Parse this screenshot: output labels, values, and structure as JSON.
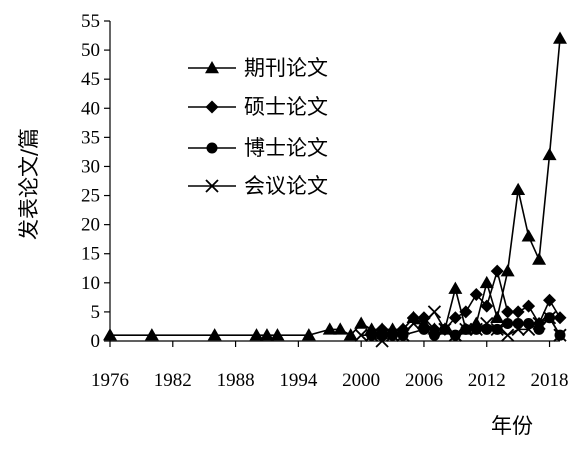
{
  "chart_data": {
    "type": "line",
    "xlabel": "年份",
    "ylabel": "发表论文/篇",
    "xlim": [
      1976,
      2019
    ],
    "ylim": [
      0,
      55
    ],
    "x_ticks": [
      1976,
      1982,
      1988,
      1994,
      2000,
      2006,
      2012,
      2018
    ],
    "y_ticks": [
      0,
      5,
      10,
      15,
      20,
      25,
      30,
      35,
      40,
      45,
      50,
      55
    ],
    "grid": false,
    "legend": "top-center",
    "series": [
      {
        "name": "期刊论文",
        "marker": "triangle",
        "x": [
          1976,
          1980,
          1986,
          1990,
          1991,
          1992,
          1995,
          1997,
          1998,
          1999,
          2000,
          2001,
          2002,
          2003,
          2004,
          2005,
          2006,
          2007,
          2008,
          2009,
          2010,
          2011,
          2012,
          2013,
          2014,
          2015,
          2016,
          2017,
          2018,
          2019
        ],
        "values": [
          1,
          1,
          1,
          1,
          1,
          1,
          1,
          2,
          2,
          1,
          3,
          2,
          2,
          2,
          2,
          4,
          3,
          2,
          2,
          9,
          2,
          3,
          10,
          4,
          12,
          26,
          18,
          14,
          32,
          52
        ]
      },
      {
        "name": "硕士论文",
        "marker": "diamond",
        "x": [
          2001,
          2002,
          2003,
          2004,
          2005,
          2006,
          2007,
          2008,
          2009,
          2010,
          2011,
          2012,
          2013,
          2014,
          2015,
          2016,
          2017,
          2018,
          2019
        ],
        "values": [
          1,
          2,
          1,
          2,
          4,
          4,
          2,
          2,
          4,
          5,
          8,
          6,
          12,
          5,
          5,
          6,
          3,
          7,
          4
        ]
      },
      {
        "name": "博士论文",
        "marker": "circle",
        "x": [
          2001,
          2002,
          2003,
          2004,
          2006,
          2007,
          2008,
          2009,
          2010,
          2011,
          2012,
          2013,
          2014,
          2015,
          2016,
          2017,
          2018,
          2019
        ],
        "values": [
          1,
          1,
          1,
          1,
          2,
          1,
          2,
          1,
          2,
          2,
          2,
          2,
          3,
          3,
          3,
          2,
          4,
          1
        ]
      },
      {
        "name": "会议论文",
        "marker": "x",
        "x": [
          2000,
          2001,
          2002,
          2003,
          2004,
          2005,
          2006,
          2007,
          2008,
          2009,
          2010,
          2011,
          2012,
          2013,
          2014,
          2015,
          2016,
          2017,
          2018,
          2019
        ],
        "values": [
          1,
          1,
          0,
          1,
          1,
          3,
          3,
          5,
          2,
          1,
          2,
          2,
          3,
          2,
          1,
          2,
          2,
          3,
          4,
          1
        ]
      }
    ]
  }
}
